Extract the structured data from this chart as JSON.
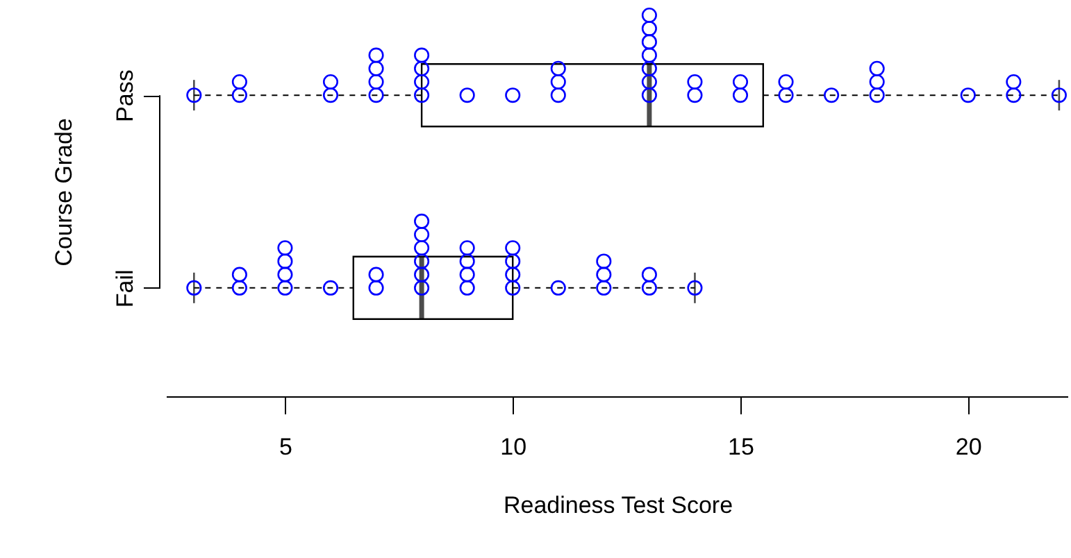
{
  "chart_data": {
    "type": "box",
    "orientation": "horizontal",
    "xlabel": "Readiness Test Score",
    "ylabel": "Course Grade",
    "categories": [
      "Pass",
      "Fail"
    ],
    "boxes": [
      {
        "low": 3,
        "q1": 8,
        "median": 13,
        "q3": 15.5,
        "high": 22
      },
      {
        "low": 3,
        "q1": 6.5,
        "median": 8,
        "q3": 10,
        "high": 14
      }
    ],
    "series": [
      {
        "type": "scatter",
        "color": "#0000ff",
        "marker": "circle",
        "x": [
          "Pass",
          "Pass",
          "Pass",
          "Pass",
          "Pass",
          "Pass",
          "Pass",
          "Pass",
          "Pass",
          "Pass",
          "Pass",
          "Pass",
          "Pass",
          "Pass",
          "Pass",
          "Pass",
          "Pass",
          "Pass",
          "Pass",
          "Pass",
          "Pass",
          "Pass",
          "Pass",
          "Pass",
          "Pass",
          "Pass",
          "Pass",
          "Pass",
          "Pass",
          "Pass",
          "Pass",
          "Pass",
          "Pass",
          "Pass",
          "Pass",
          "Pass",
          "Pass",
          "Pass",
          "Pass",
          "Fail",
          "Fail",
          "Fail",
          "Fail",
          "Fail",
          "Fail",
          "Fail",
          "Fail",
          "Fail",
          "Fail",
          "Fail",
          "Fail",
          "Fail",
          "Fail",
          "Fail",
          "Fail",
          "Fail",
          "Fail",
          "Fail",
          "Fail",
          "Fail",
          "Fail",
          "Fail",
          "Fail",
          "Fail",
          "Fail",
          "Fail",
          "Fail",
          "Fail",
          "Fail",
          "Fail"
        ],
        "values": [
          3,
          4,
          4,
          6,
          6,
          7,
          7,
          7,
          7,
          8,
          8,
          8,
          8,
          9,
          10,
          11,
          11,
          11,
          13,
          13,
          13,
          13,
          13,
          13,
          13,
          14,
          14,
          15,
          15,
          16,
          16,
          17,
          18,
          18,
          18,
          20,
          21,
          21,
          22,
          3,
          4,
          4,
          5,
          5,
          5,
          5,
          6,
          7,
          7,
          8,
          8,
          8,
          8,
          8,
          8,
          9,
          9,
          9,
          9,
          10,
          10,
          10,
          10,
          11,
          12,
          12,
          12,
          13,
          13,
          14
        ]
      }
    ],
    "xlim": [
      2.4,
      22.2
    ],
    "xticks": [
      5,
      10,
      15,
      20
    ],
    "line_style": "dashed",
    "grid": false
  }
}
